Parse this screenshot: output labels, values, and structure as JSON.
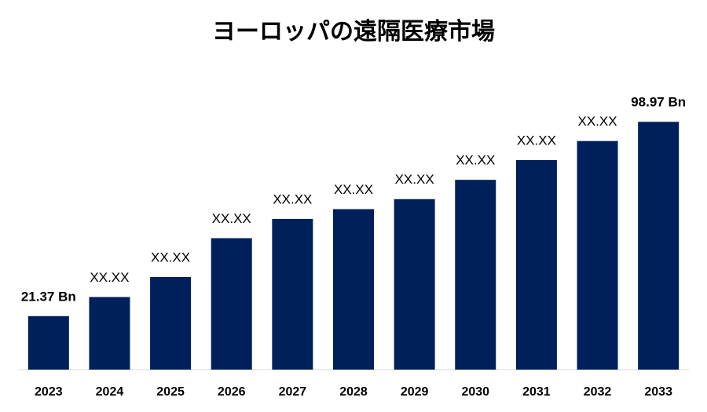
{
  "chart_data": {
    "type": "bar",
    "title": "ヨーロッパの遠隔医療市場",
    "categories": [
      "2023",
      "2024",
      "2025",
      "2026",
      "2027",
      "2028",
      "2029",
      "2030",
      "2031",
      "2032",
      "2033"
    ],
    "values": [
      21.37,
      29.0,
      37.0,
      52.5,
      60.2,
      64.1,
      68.1,
      75.8,
      83.7,
      91.3,
      98.97
    ],
    "value_labels": [
      "21.37 Bn",
      "XX.XX",
      "XX.XX",
      "XX.XX",
      "XX.XX",
      "XX.XX",
      "XX.XX",
      "XX.XX",
      "XX.XX",
      "XX.XX",
      "98.97 Bn"
    ],
    "color": "#00205b",
    "ylim": [
      0,
      105
    ]
  }
}
